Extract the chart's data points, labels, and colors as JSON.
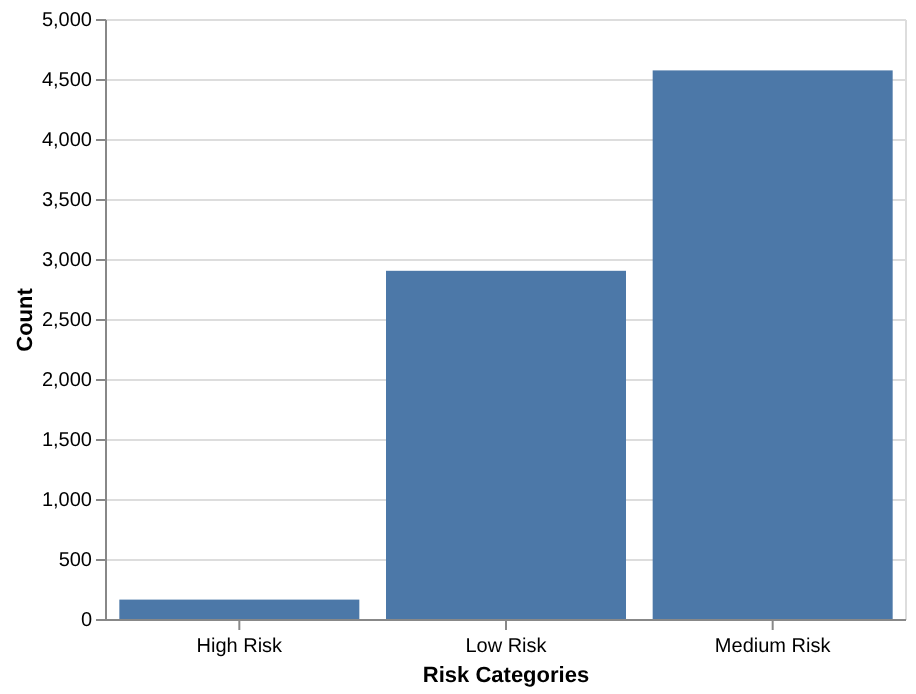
{
  "chart_data": {
    "type": "bar",
    "xlabel": "Risk Categories",
    "ylabel": "Count",
    "categories": [
      "High Risk",
      "Low Risk",
      "Medium Risk"
    ],
    "values": [
      170,
      2910,
      4580
    ],
    "color": "#4c78a8",
    "ylim": [
      0,
      5000
    ],
    "yticks": [
      {
        "value": 0,
        "label": "0"
      },
      {
        "value": 500,
        "label": "500"
      },
      {
        "value": 1000,
        "label": "1,000"
      },
      {
        "value": 1500,
        "label": "1,500"
      },
      {
        "value": 2000,
        "label": "2,000"
      },
      {
        "value": 2500,
        "label": "2,500"
      },
      {
        "value": 3000,
        "label": "3,000"
      },
      {
        "value": 3500,
        "label": "3,500"
      },
      {
        "value": 4000,
        "label": "4,000"
      },
      {
        "value": 4500,
        "label": "4,500"
      },
      {
        "value": 5000,
        "label": "5,000"
      }
    ],
    "grid": true
  }
}
